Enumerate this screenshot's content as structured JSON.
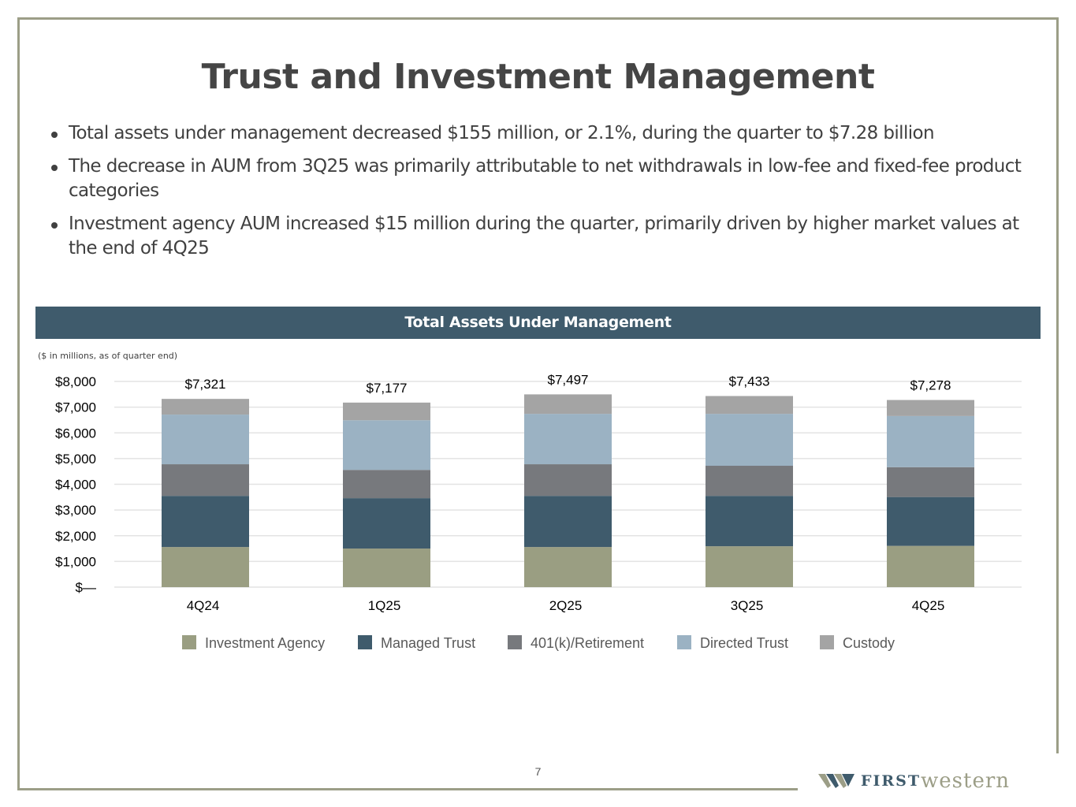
{
  "slide": {
    "title": "Trust and Investment Management",
    "bullets": [
      "Total assets under management decreased $155 million, or 2.1%, during the quarter to $7.28 billion",
      "The decrease in AUM from 3Q25 was primarily attributable to net withdrawals in low-fee and fixed-fee product categories",
      "Investment agency AUM increased $15 million during the quarter, primarily driven by higher market values at the end of 4Q25"
    ],
    "chart_header": "Total Assets Under Management",
    "units_note": "($ in millions, as of quarter end)",
    "page_number": "7",
    "logo": {
      "first": "FIRST",
      "western": "western"
    }
  },
  "colors": {
    "frame": "#9c9e87",
    "header_bg": "#3f5b6c",
    "text": "#404040"
  },
  "chart_data": {
    "type": "bar",
    "stacked": true,
    "title": "Total Assets Under Management",
    "subtitle": "($ in millions, as of quarter end)",
    "xlabel": "",
    "ylabel": "",
    "categories": [
      "4Q24",
      "1Q25",
      "2Q25",
      "3Q25",
      "4Q25"
    ],
    "ylim": [
      0,
      8000
    ],
    "yticks": [
      0,
      1000,
      2000,
      3000,
      4000,
      5000,
      6000,
      7000,
      8000
    ],
    "ytick_labels": [
      "$—",
      "$1,000",
      "$2,000",
      "$3,000",
      "$4,000",
      "$5,000",
      "$6,000",
      "$7,000",
      "$8,000"
    ],
    "grid": true,
    "legend_position": "bottom",
    "series": [
      {
        "name": "Investment Agency",
        "color": "#9a9e82",
        "values": [
          1560,
          1500,
          1560,
          1590,
          1605
        ]
      },
      {
        "name": "Managed Trust",
        "color": "#3f5b6c",
        "values": [
          1990,
          1960,
          1990,
          1960,
          1900
        ]
      },
      {
        "name": "401(k)/Retirement",
        "color": "#77797d",
        "values": [
          1230,
          1100,
          1230,
          1170,
          1160
        ]
      },
      {
        "name": "Directed Trust",
        "color": "#9bb2c3",
        "values": [
          1930,
          1930,
          1960,
          2020,
          1990
        ]
      },
      {
        "name": "Custody",
        "color": "#a4a4a4",
        "values": [
          611,
          687,
          757,
          693,
          623
        ]
      }
    ],
    "totals": [
      7321,
      7177,
      7497,
      7433,
      7278
    ],
    "total_labels": [
      "$7,321",
      "$7,177",
      "$7,497",
      "$7,433",
      "$7,278"
    ]
  }
}
